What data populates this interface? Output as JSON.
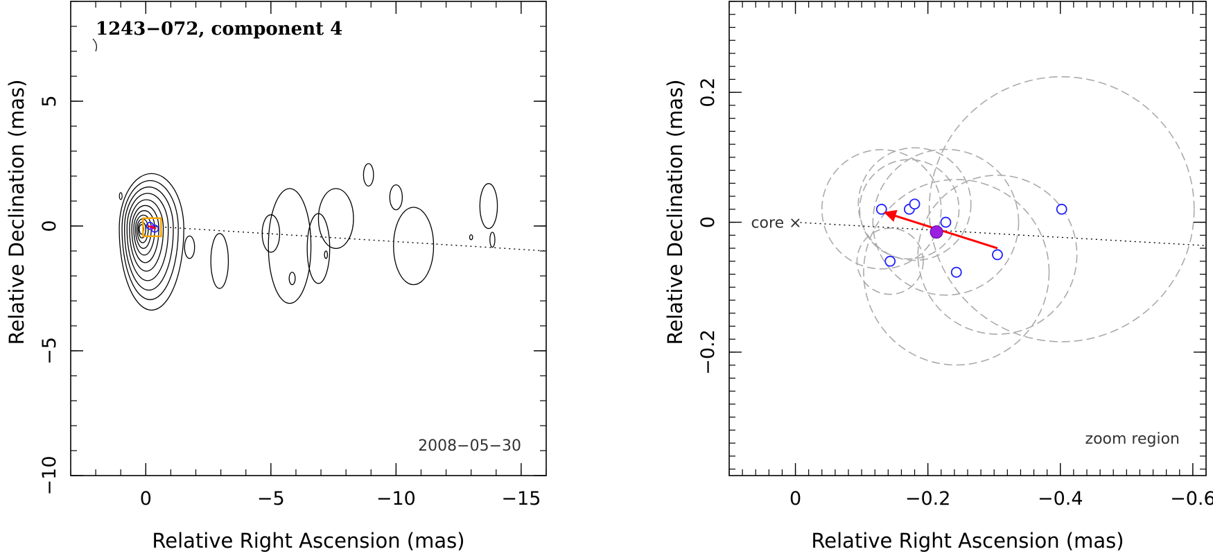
{
  "chart_data": [
    {
      "type": "contour",
      "title": "1243−072, component 4",
      "xlabel": "Relative Right Ascension (mas)",
      "ylabel": "Relative Declination (mas)",
      "xlim": [
        3,
        -16
      ],
      "ylim": [
        -10,
        9
      ],
      "xticks": [
        0,
        -5,
        -10,
        -15
      ],
      "xtick_labels": [
        "0",
        "−5",
        "−10",
        "−15"
      ],
      "yticks": [
        5,
        0,
        -5,
        -10
      ],
      "ytick_labels": [
        "5",
        "0",
        "−5",
        "−10"
      ],
      "date_label": "2008−05−30",
      "jet_axis": {
        "from": [
          0,
          0
        ],
        "to": [
          -16,
          -1.0
        ]
      },
      "core_marker": {
        "x": -0.25,
        "y": -0.05
      },
      "core_contours": {
        "center": [
          0.2,
          -0.1
        ],
        "levels": [
          0.12,
          0.2,
          0.3,
          0.42,
          0.56,
          0.72,
          0.9,
          1.1,
          1.3,
          1.5,
          1.72
        ]
      },
      "jet_contours": [
        {
          "cx": -1.75,
          "cy": -0.85,
          "rx": 0.2,
          "ry": 0.45
        },
        {
          "cx": -2.95,
          "cy": -1.4,
          "rx": 0.35,
          "ry": 1.1
        },
        {
          "cx": -5.0,
          "cy": -0.3,
          "rx": 0.35,
          "ry": 0.75
        },
        {
          "cx": -5.75,
          "cy": -0.8,
          "rx": 0.85,
          "ry": 2.3
        },
        {
          "cx": -6.9,
          "cy": -0.9,
          "rx": 0.45,
          "ry": 1.4
        },
        {
          "cx": -7.6,
          "cy": 0.3,
          "rx": 0.7,
          "ry": 1.2
        },
        {
          "cx": -8.9,
          "cy": 2.05,
          "rx": 0.2,
          "ry": 0.45
        },
        {
          "cx": -10.0,
          "cy": 1.15,
          "rx": 0.25,
          "ry": 0.5
        },
        {
          "cx": -10.7,
          "cy": -0.8,
          "rx": 0.8,
          "ry": 1.55
        },
        {
          "cx": -13.7,
          "cy": 0.8,
          "rx": 0.35,
          "ry": 0.9
        },
        {
          "cx": -13.85,
          "cy": -0.55,
          "rx": 0.1,
          "ry": 0.3
        },
        {
          "cx": -13.0,
          "cy": -0.45,
          "rx": 0.06,
          "ry": 0.1
        },
        {
          "cx": -7.2,
          "cy": -1.15,
          "rx": 0.06,
          "ry": 0.15
        },
        {
          "cx": -5.85,
          "cy": -2.1,
          "rx": 0.12,
          "ry": 0.25
        }
      ]
    },
    {
      "type": "scatter",
      "xlabel": "Relative Right Ascension (mas)",
      "ylabel": "Relative Declination (mas)",
      "xlim": [
        0.1,
        -0.62
      ],
      "ylim": [
        -0.39,
        0.34
      ],
      "xticks": [
        0,
        -0.2,
        -0.4,
        -0.6
      ],
      "xtick_labels": [
        "0",
        "−0.2",
        "−0.4",
        "−0.6"
      ],
      "yticks": [
        0.2,
        0,
        -0.2
      ],
      "ytick_labels": [
        "0.2",
        "0",
        "−0.2"
      ],
      "core_label": "core ×",
      "zoom_label": "zoom region",
      "jet_axis": {
        "from": [
          0,
          0
        ],
        "to": [
          -0.62,
          -0.036
        ]
      },
      "points": [
        {
          "x": -0.13,
          "y": 0.02,
          "r": 0.09
        },
        {
          "x": -0.143,
          "y": -0.06,
          "r": 0.05
        },
        {
          "x": -0.172,
          "y": 0.02,
          "r": 0.075
        },
        {
          "x": -0.18,
          "y": 0.028,
          "r": 0.085
        },
        {
          "x": -0.227,
          "y": 0.0,
          "r": 0.11
        },
        {
          "x": -0.243,
          "y": -0.077,
          "r": 0.14
        },
        {
          "x": -0.305,
          "y": -0.05,
          "r": 0.12
        },
        {
          "x": -0.402,
          "y": 0.02,
          "r": 0.2
        }
      ],
      "mean_point": {
        "x": -0.213,
        "y": -0.015
      },
      "motion_arrow": {
        "from": [
          -0.305,
          -0.04
        ],
        "to": [
          -0.135,
          0.015
        ]
      }
    }
  ]
}
